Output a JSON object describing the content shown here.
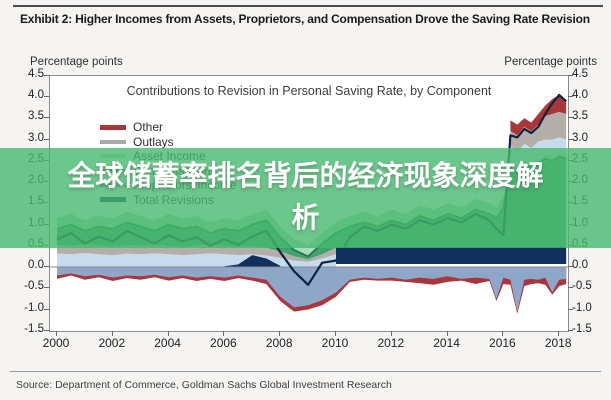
{
  "header": {
    "title": "Exhibit 2: Higher Incomes from Assets, Proprietors, and Compensation Drove the Saving Rate Revision"
  },
  "chart": {
    "left_axis_title": "Percentage points",
    "right_axis_title": "Percentage points",
    "inner_title": "Contributions to Revision in Personal Saving Rate, by Component",
    "legend": [
      {
        "label": "Other",
        "color": "#a8363b",
        "weight": 5
      },
      {
        "label": "Outlays",
        "color": "#a9a9a9",
        "weight": 4
      },
      {
        "label": "Asset Income",
        "color": "#b7dcc3",
        "weight": 4
      },
      {
        "label": "Compensation",
        "color": "#35a07a",
        "weight": 4
      },
      {
        "label": "Proprietors' Income",
        "color": "#8ea6c8",
        "weight": 4
      },
      {
        "label": "Total Revisions",
        "color": "#12305e",
        "weight": 5
      }
    ],
    "y_ticks": [
      4.5,
      4.0,
      3.5,
      3.0,
      2.5,
      2.0,
      1.5,
      1.0,
      0.5,
      0.0,
      -0.5,
      -1.0,
      -1.5
    ],
    "x_ticks": [
      2000,
      2002,
      2004,
      2006,
      2008,
      2010,
      2012,
      2014,
      2016,
      2018
    ]
  },
  "overlay": {
    "line1": "全球储蓄率排名背后的经济现象深度解",
    "line2": "析",
    "color": "#46b96e"
  },
  "footer": {
    "source": "Source: Department of Commerce, Goldman Sachs Global Investment Research"
  },
  "chart_data": {
    "type": "area",
    "title": "Contributions to Revision in Personal Saving Rate, by Component",
    "ylabel": "Percentage points",
    "y_range": [
      -1.5,
      4.5
    ],
    "x_range": [
      2000,
      2018.25
    ],
    "grid": false,
    "legend_position": "upper-left",
    "x": [
      2000,
      2000.5,
      2001,
      2001.5,
      2002,
      2002.5,
      2003,
      2003.5,
      2004,
      2004.5,
      2005,
      2005.5,
      2006,
      2006.5,
      2007,
      2007.5,
      2008,
      2008.5,
      2009,
      2009.5,
      2010,
      2010.5,
      2011,
      2011.5,
      2012,
      2012.5,
      2013,
      2013.5,
      2014,
      2014.5,
      2015,
      2015.5,
      2015.75,
      2016,
      2016.25,
      2016.5,
      2016.75,
      2017,
      2017.25,
      2017.5,
      2017.75,
      2018,
      2018.25
    ],
    "bands": [
      {
        "name": "red-negative-band",
        "color": "#a8363b",
        "i0": 0,
        "i1": 42,
        "top": 0,
        "bottom": [
          -0.28,
          -0.2,
          -0.3,
          -0.24,
          -0.33,
          -0.26,
          -0.3,
          -0.24,
          -0.32,
          -0.26,
          -0.33,
          -0.28,
          -0.33,
          -0.26,
          -0.32,
          -0.4,
          -0.8,
          -1.05,
          -1.0,
          -0.9,
          -0.7,
          -0.35,
          -0.3,
          -0.32,
          -0.32,
          -0.35,
          -0.38,
          -0.42,
          -0.35,
          -0.32,
          -0.4,
          -0.33,
          -0.8,
          -0.4,
          -0.42,
          -1.1,
          -0.45,
          -0.4,
          -0.38,
          -0.42,
          -0.65,
          -0.45,
          -0.4
        ]
      },
      {
        "name": "blue-negative-band",
        "color": "#8ea6c8",
        "i0": 0,
        "i1": 42,
        "top": 0,
        "bottom": [
          -0.2,
          -0.15,
          -0.22,
          -0.18,
          -0.25,
          -0.2,
          -0.22,
          -0.18,
          -0.24,
          -0.2,
          -0.25,
          -0.22,
          -0.25,
          -0.2,
          -0.25,
          -0.3,
          -0.7,
          -0.95,
          -0.9,
          -0.78,
          -0.6,
          -0.3,
          -0.25,
          -0.28,
          -0.25,
          -0.3,
          -0.25,
          -0.28,
          -0.22,
          -0.28,
          -0.25,
          -0.28,
          -0.75,
          -0.25,
          -0.3,
          -1.05,
          -0.3,
          -0.28,
          -0.3,
          -0.25,
          -0.6,
          -0.3,
          -0.28
        ]
      },
      {
        "name": "pale-blue-band-early",
        "color": "#c7dbee",
        "i0": 0,
        "i1": 20,
        "bottom": 0,
        "top": [
          0.32,
          0.3,
          0.33,
          0.3,
          0.28,
          0.31,
          0.3,
          0.32,
          0.3,
          0.28,
          0.3,
          0.32,
          0.3,
          0.28,
          0.3,
          0.27,
          0.22,
          0.15,
          0.12,
          0.2,
          0.3
        ]
      },
      {
        "name": "gray-band-early",
        "color": "#b3afa8",
        "i0": 0,
        "i1": 20,
        "bottom": [
          0.32,
          0.3,
          0.33,
          0.3,
          0.28,
          0.31,
          0.3,
          0.32,
          0.3,
          0.28,
          0.3,
          0.32,
          0.3,
          0.28,
          0.3,
          0.27,
          0.22,
          0.15,
          0.12,
          0.2,
          0.3
        ],
        "top": [
          0.52,
          0.5,
          0.54,
          0.5,
          0.47,
          0.52,
          0.5,
          0.53,
          0.5,
          0.47,
          0.5,
          0.53,
          0.5,
          0.47,
          0.5,
          0.45,
          0.37,
          0.25,
          0.18,
          0.3,
          0.45
        ]
      },
      {
        "name": "pale-green-band",
        "color": "#aed8bd",
        "i0": 0,
        "i1": 42,
        "bottom": [
          0.9,
          1.0,
          0.85,
          0.95,
          0.9,
          1.05,
          0.95,
          0.85,
          1.0,
          0.9,
          0.95,
          0.8,
          0.9,
          0.85,
          1.0,
          1.1,
          0.7,
          0.4,
          0.25,
          0.55,
          0.8,
          0.95,
          1.05,
          0.95,
          1.1,
          1.0,
          1.2,
          1.1,
          1.25,
          1.15,
          1.35,
          1.25,
          1.15,
          1.4,
          2.35,
          2.25,
          2.45,
          2.35,
          2.45,
          2.55,
          2.5,
          2.6,
          2.55
        ],
        "top": [
          1.15,
          1.25,
          1.1,
          1.2,
          1.15,
          1.3,
          1.2,
          1.1,
          1.25,
          1.15,
          1.2,
          1.05,
          1.15,
          1.1,
          1.25,
          1.35,
          0.95,
          0.65,
          0.5,
          0.8,
          1.05,
          1.2,
          1.3,
          1.2,
          1.35,
          1.25,
          1.45,
          1.35,
          1.5,
          1.4,
          1.6,
          1.5,
          1.4,
          1.65,
          2.45,
          2.35,
          2.55,
          2.45,
          2.55,
          2.65,
          2.6,
          2.7,
          2.65
        ]
      },
      {
        "name": "green-band",
        "color": "#46a171",
        "stroke": "#1e7a4c",
        "i0": 0,
        "i1": 42,
        "bottom": [
          0.52,
          0.5,
          0.54,
          0.5,
          0.47,
          0.52,
          0.5,
          0.53,
          0.5,
          0.47,
          0.5,
          0.53,
          0.5,
          0.47,
          0.5,
          0.45,
          0.37,
          0.25,
          0.18,
          0.3,
          0.45,
          0.47,
          0.47,
          0.47,
          0.47,
          0.47,
          0.47,
          0.47,
          0.47,
          0.47,
          0.47,
          0.47,
          0.47,
          0.47,
          0.47,
          0.47,
          0.47,
          0.47,
          0.47,
          0.47,
          0.47,
          0.47,
          0.47
        ],
        "top": [
          0.9,
          1.0,
          0.85,
          0.95,
          0.9,
          1.05,
          0.95,
          0.85,
          1.0,
          0.9,
          0.95,
          0.8,
          0.9,
          0.85,
          1.0,
          1.1,
          0.7,
          0.4,
          0.25,
          0.55,
          0.8,
          0.95,
          1.05,
          0.95,
          1.1,
          1.0,
          1.2,
          1.1,
          1.25,
          1.15,
          1.35,
          1.25,
          1.15,
          1.4,
          2.35,
          2.25,
          2.45,
          2.35,
          2.45,
          2.55,
          2.5,
          2.6,
          2.55
        ]
      },
      {
        "name": "navy-bump",
        "color": "#12305e",
        "i0": 12,
        "i1": 16,
        "bottom": 0,
        "top": [
          0.02,
          0.06,
          0.28,
          0.2,
          0.03
        ]
      },
      {
        "name": "pale-blue-band-spike",
        "color": "#c7dbee",
        "i0": 34,
        "i1": 42,
        "bottom": [
          2.45,
          2.35,
          2.55,
          2.45,
          2.55,
          2.65,
          2.6,
          2.7,
          2.65
        ],
        "top": [
          2.85,
          2.7,
          2.9,
          2.8,
          2.95,
          3.0,
          3.0,
          3.05,
          3.0
        ]
      },
      {
        "name": "gray-band-spike",
        "color": "#b3afa8",
        "i0": 34,
        "i1": 42,
        "bottom": [
          2.85,
          2.7,
          2.9,
          2.8,
          2.95,
          3.0,
          3.0,
          3.05,
          3.0
        ],
        "top": [
          3.2,
          3.1,
          3.3,
          3.2,
          3.35,
          3.55,
          3.6,
          3.65,
          3.6
        ]
      },
      {
        "name": "red-band-spike",
        "color": "#a8363b",
        "i0": 34,
        "i1": 42,
        "bottom": [
          3.2,
          3.1,
          3.3,
          3.2,
          3.35,
          3.55,
          3.6,
          3.65,
          3.6
        ],
        "top": [
          3.45,
          3.35,
          3.5,
          3.4,
          3.6,
          3.8,
          3.95,
          4.05,
          3.9
        ]
      }
    ],
    "total_line": {
      "name": "Total Revisions",
      "color": "#0e2340",
      "values": [
        0.65,
        0.8,
        0.55,
        0.72,
        0.6,
        0.85,
        0.7,
        0.55,
        0.75,
        0.6,
        0.7,
        0.5,
        0.65,
        0.52,
        0.72,
        0.85,
        0.35,
        -0.1,
        -0.42,
        0.1,
        0.15,
        0.7,
        0.95,
        0.85,
        1.0,
        0.9,
        1.1,
        1.0,
        1.15,
        1.05,
        1.25,
        1.1,
        0.9,
        0.75,
        3.1,
        3.05,
        3.25,
        3.15,
        3.3,
        3.6,
        3.85,
        4.05,
        3.9
      ]
    },
    "navy_flat_band": {
      "name": "navy-band",
      "color": "#12305e",
      "i0": 20,
      "i1": 42,
      "bottom": 0.07,
      "top": 0.47
    }
  }
}
